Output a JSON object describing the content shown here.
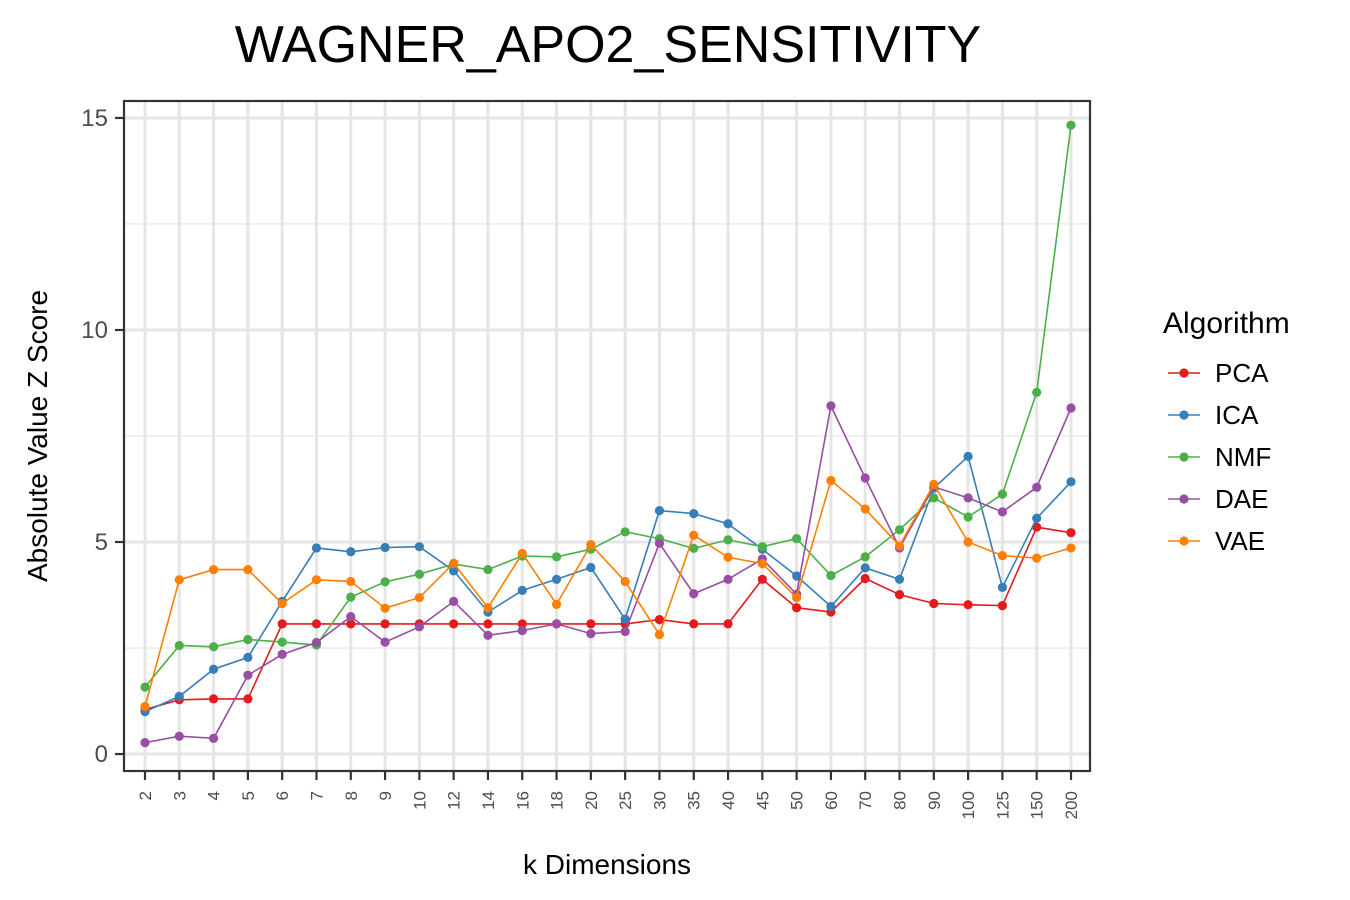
{
  "chart_data": {
    "type": "line",
    "title": "WAGNER_APO2_SENSITIVITY",
    "xlabel": "k Dimensions",
    "ylabel": "Absolute Value Z Score",
    "ylim": [
      -0.4,
      15.4
    ],
    "yticks": [
      0,
      5,
      10,
      15
    ],
    "grid": true,
    "legend_title": "Algorithm",
    "legend_position": "right",
    "categories": [
      "2",
      "3",
      "4",
      "5",
      "6",
      "7",
      "8",
      "9",
      "10",
      "12",
      "14",
      "16",
      "18",
      "20",
      "25",
      "30",
      "35",
      "40",
      "45",
      "50",
      "60",
      "70",
      "80",
      "90",
      "100",
      "125",
      "150",
      "200"
    ],
    "series": [
      {
        "name": "PCA",
        "color": "#e41a1c",
        "values": [
          1.05,
          1.28,
          1.3,
          1.3,
          3.07,
          3.07,
          3.07,
          3.07,
          3.07,
          3.07,
          3.07,
          3.07,
          3.07,
          3.07,
          3.07,
          3.17,
          3.07,
          3.07,
          4.12,
          3.45,
          3.35,
          4.14,
          3.76,
          3.55,
          3.52,
          3.5,
          5.35,
          5.22
        ]
      },
      {
        "name": "ICA",
        "color": "#377eb8",
        "values": [
          1.0,
          1.36,
          2.0,
          2.28,
          3.6,
          4.86,
          4.77,
          4.87,
          4.89,
          4.32,
          3.35,
          3.86,
          4.12,
          4.4,
          3.18,
          5.74,
          5.67,
          5.43,
          4.83,
          4.2,
          3.48,
          4.39,
          4.12,
          6.27,
          7.02,
          3.93,
          5.56,
          6.42
        ]
      },
      {
        "name": "NMF",
        "color": "#4daf4a",
        "values": [
          1.58,
          2.56,
          2.53,
          2.7,
          2.64,
          2.57,
          3.7,
          4.06,
          4.24,
          4.48,
          4.35,
          4.67,
          4.65,
          4.83,
          5.24,
          5.08,
          4.85,
          5.05,
          4.89,
          5.08,
          4.21,
          4.65,
          5.29,
          6.04,
          5.59,
          6.13,
          8.53,
          14.83
        ]
      },
      {
        "name": "DAE",
        "color": "#984ea3",
        "values": [
          0.27,
          0.42,
          0.37,
          1.86,
          2.35,
          2.63,
          3.24,
          2.64,
          3.0,
          3.6,
          2.8,
          2.91,
          3.07,
          2.84,
          2.89,
          4.97,
          3.78,
          4.12,
          4.6,
          3.77,
          8.21,
          6.51,
          4.86,
          6.3,
          6.04,
          5.71,
          6.29,
          8.16
        ]
      },
      {
        "name": "VAE",
        "color": "#ff7f00",
        "values": [
          1.12,
          4.11,
          4.35,
          4.35,
          3.55,
          4.11,
          4.07,
          3.44,
          3.69,
          4.5,
          3.45,
          4.73,
          3.53,
          4.94,
          4.07,
          2.82,
          5.16,
          4.64,
          4.49,
          3.69,
          6.45,
          5.78,
          4.91,
          6.36,
          5.0,
          4.68,
          4.62,
          4.86
        ]
      }
    ]
  }
}
